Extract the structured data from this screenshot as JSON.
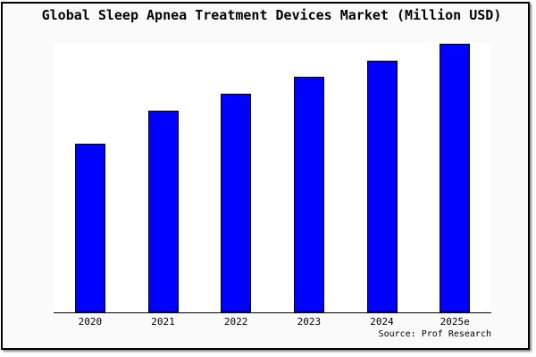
{
  "source": "Source: Prof Research",
  "colors": {
    "bar_fill": "#0000ff",
    "bar_border": "#000000",
    "frame_border": "#000000",
    "page_background": "#fafafa",
    "plot_background": "#ffffff",
    "axis_line": "#000000",
    "text": "#000000"
  },
  "chart_data": {
    "type": "bar",
    "title": "Global Sleep Apnea Treatment Devices Market (Million USD)",
    "categories": [
      "2020",
      "2021",
      "2022",
      "2023",
      "2024",
      "2025e"
    ],
    "values": [
      62.8,
      75.1,
      81.4,
      87.7,
      93.7,
      100
    ],
    "values_unit": "relative estimate (no y-axis scale shown; tallest bar 2025e = 100)",
    "xlabel": "",
    "ylabel": "",
    "ylim": [
      0,
      100
    ],
    "grid": false,
    "legend": false,
    "bar_color": "#0000ff",
    "annotations": [
      "Source: Prof Research"
    ]
  }
}
